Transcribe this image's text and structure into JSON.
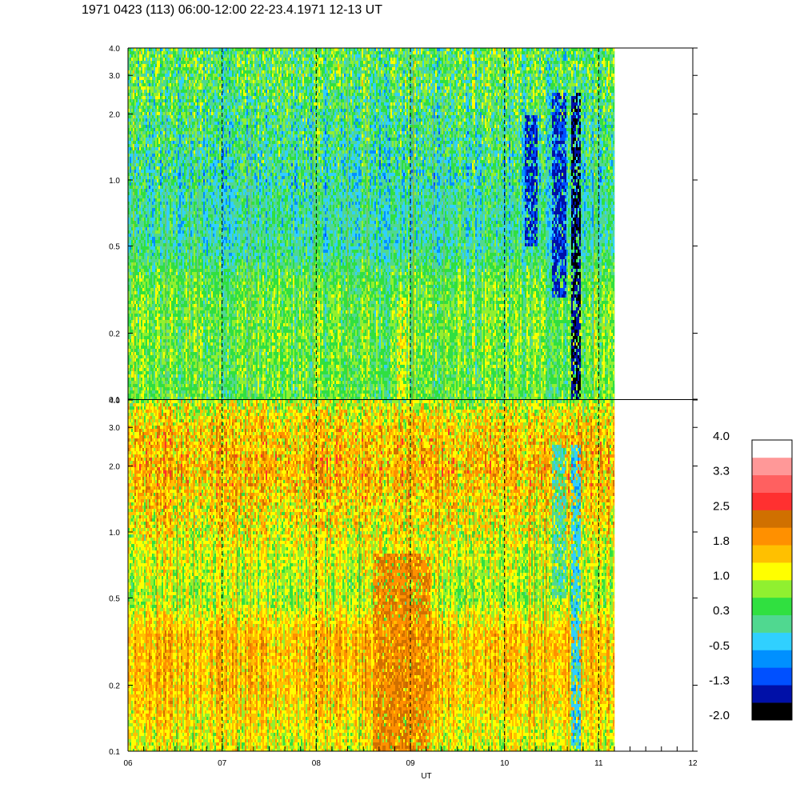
{
  "title": "1971 0423 (113) 06:00-12:00 22-23.4.1971  12-13 UT",
  "chart_data": {
    "type": "heatmap",
    "title": "1971 0423 (113) 06:00-12:00 22-23.4.1971  12-13 UT",
    "xlabel": "UT",
    "x_range": [
      6,
      12
    ],
    "x_tick_labels": [
      "06",
      "07",
      "08",
      "09",
      "10",
      "11",
      "12"
    ],
    "x_tick_values": [
      6,
      7,
      8,
      9,
      10,
      11,
      12
    ],
    "data_end_x": 11.17,
    "y_scale": "log",
    "y_range": [
      0.1,
      4.0
    ],
    "y_tick_labels": [
      "0.1",
      "0.2",
      "0.5",
      "1.0",
      "2.0",
      "3.0",
      "4.0"
    ],
    "y_tick_values": [
      0.1,
      0.2,
      0.5,
      1.0,
      2.0,
      3.0,
      4.0
    ],
    "vertical_dashed_lines_at": [
      7,
      8,
      9,
      10,
      11
    ],
    "panels": [
      {
        "name": "upper",
        "dominant_level": 0.3,
        "profile": [
          {
            "y": 0.1,
            "value": 0.5
          },
          {
            "y": 0.2,
            "value": 0.6
          },
          {
            "y": 0.35,
            "value": 0.5
          },
          {
            "y": 0.5,
            "value": 0.0
          },
          {
            "y": 1.0,
            "value": 0.0
          },
          {
            "y": 2.0,
            "value": 0.2
          },
          {
            "y": 3.0,
            "value": 0.4
          },
          {
            "y": 4.0,
            "value": 0.4
          }
        ],
        "features": [
          {
            "x": [
              8.85,
              8.95
            ],
            "y": [
              0.1,
              0.3
            ],
            "level": 1.2,
            "note": "yellow patch"
          },
          {
            "x": [
              10.2,
              10.35
            ],
            "y": [
              0.5,
              2.0
            ],
            "level": -1.3
          },
          {
            "x": [
              10.5,
              10.65
            ],
            "y": [
              0.3,
              2.5
            ],
            "level": -1.3
          },
          {
            "x": [
              10.7,
              10.8
            ],
            "y": [
              0.1,
              2.5
            ],
            "level": -1.6
          }
        ]
      },
      {
        "name": "lower",
        "dominant_level": 1.5,
        "profile": [
          {
            "y": 0.1,
            "value": 1.1
          },
          {
            "y": 0.2,
            "value": 1.6
          },
          {
            "y": 0.35,
            "value": 1.6
          },
          {
            "y": 0.5,
            "value": 0.9
          },
          {
            "y": 1.0,
            "value": 1.2
          },
          {
            "y": 2.0,
            "value": 1.7
          },
          {
            "y": 3.0,
            "value": 1.5
          },
          {
            "y": 4.0,
            "value": 1.0
          }
        ],
        "features": [
          {
            "x": [
              8.6,
              9.2
            ],
            "y": [
              0.1,
              0.8
            ],
            "level": 2.1,
            "note": "darker orange region"
          },
          {
            "x": [
              10.5,
              10.65
            ],
            "y": [
              0.5,
              2.5
            ],
            "level": 0.0
          },
          {
            "x": [
              10.7,
              10.8
            ],
            "y": [
              0.1,
              2.5
            ],
            "level": -0.3
          }
        ]
      }
    ],
    "colorbar": {
      "tick_labels": [
        "4.0",
        "3.3",
        "2.5",
        "1.8",
        "1.0",
        "0.3",
        "-0.5",
        "-1.3",
        "-2.0"
      ],
      "min": -2.0,
      "max": 4.0,
      "colors": [
        "#000000",
        "#0010a8",
        "#0050ff",
        "#0090ff",
        "#30d0ff",
        "#50d890",
        "#30e040",
        "#90f030",
        "#ffff00",
        "#ffc000",
        "#ff9000",
        "#d07000",
        "#ff3030",
        "#ff6060",
        "#ff9898",
        "#ffffff"
      ]
    }
  }
}
